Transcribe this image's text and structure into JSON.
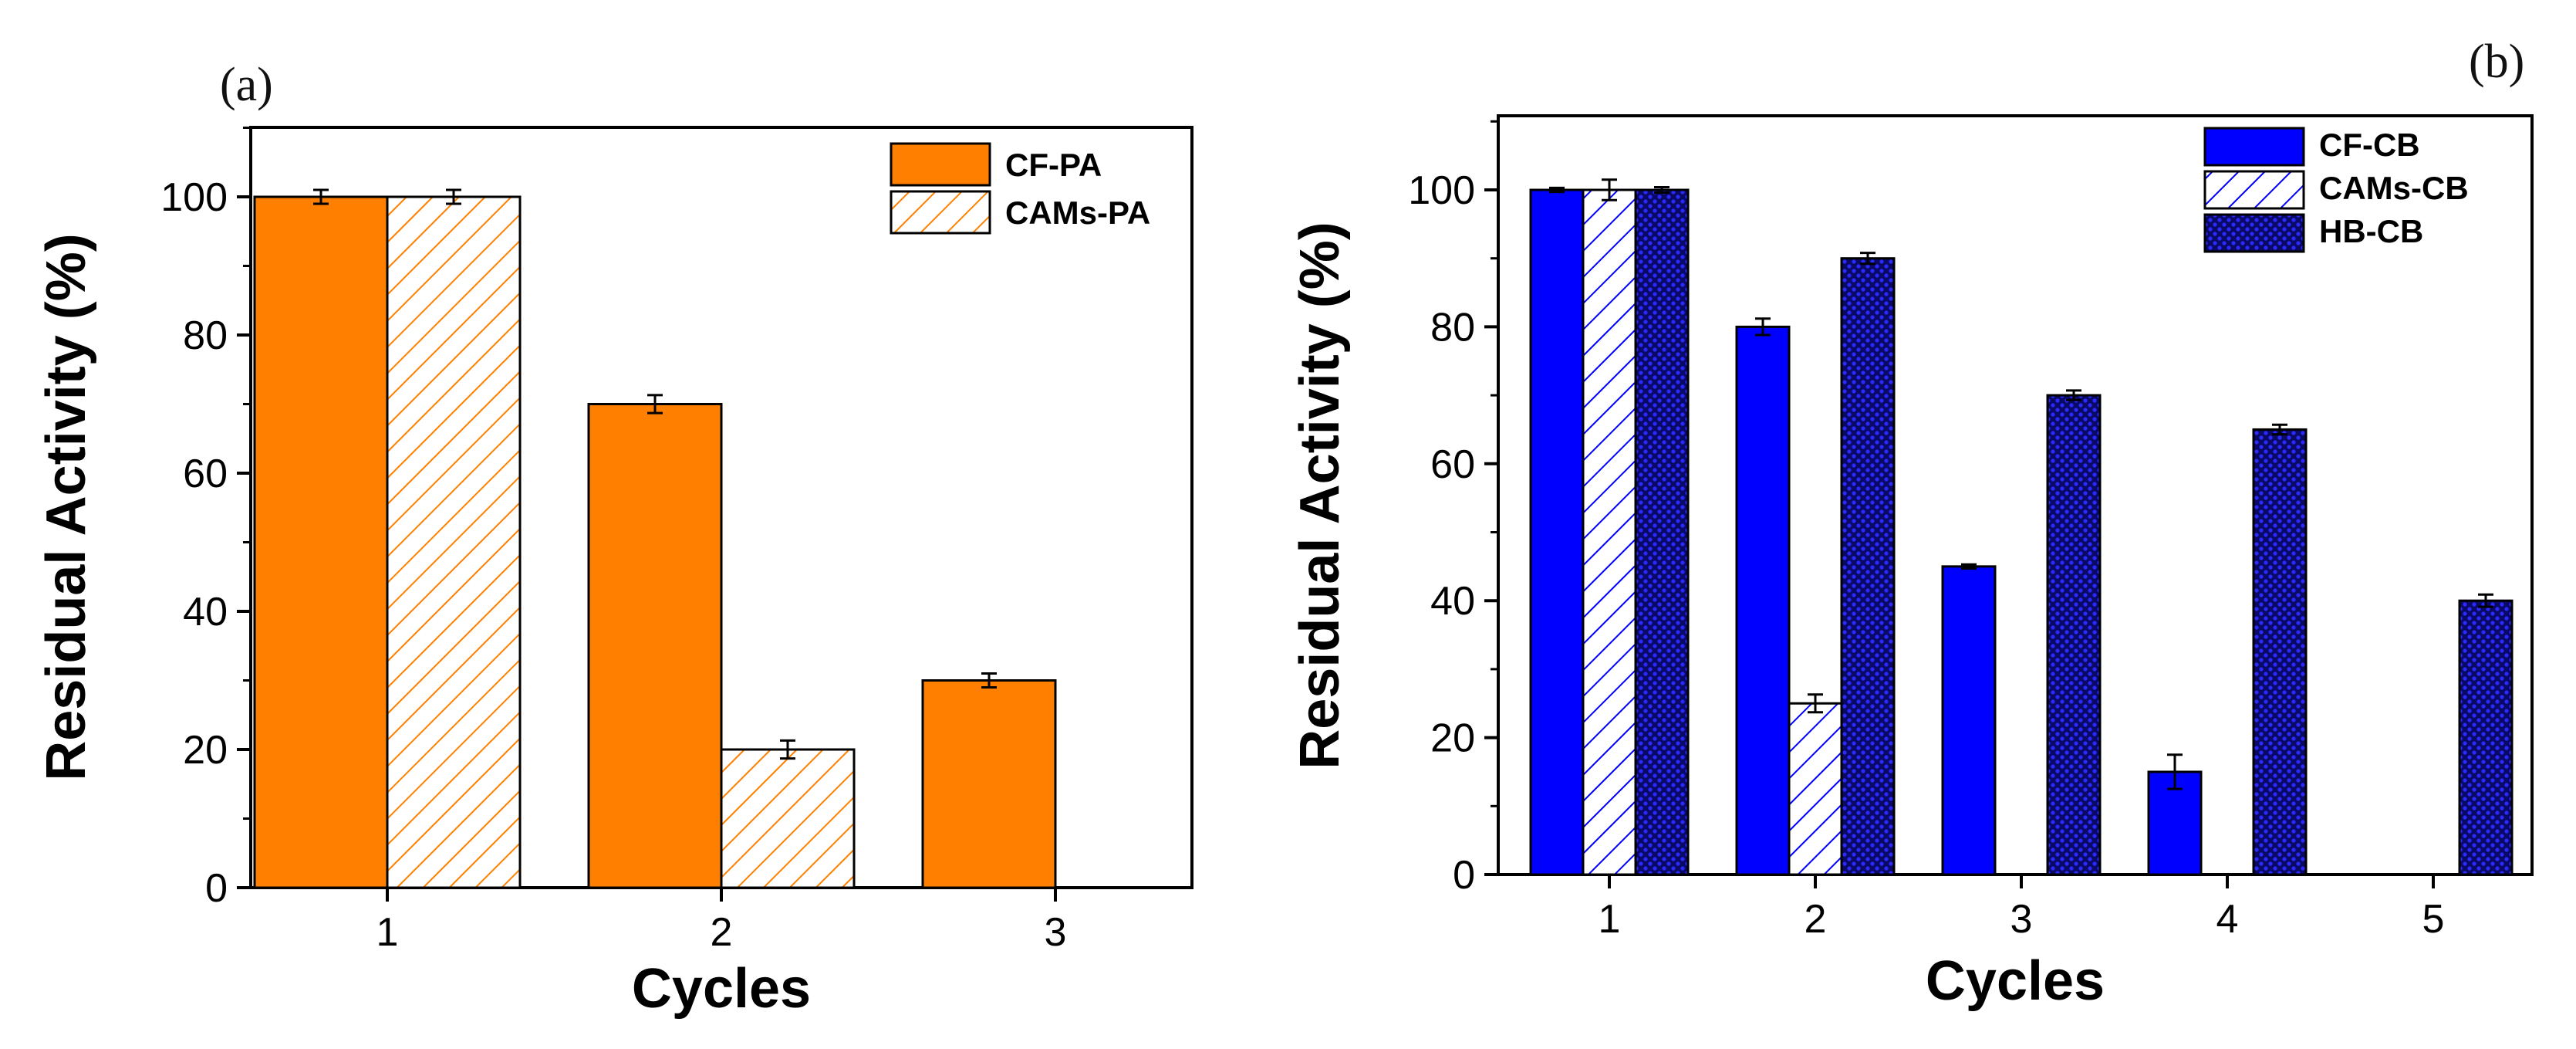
{
  "chart_data": [
    {
      "panel": "(a)",
      "type": "bar",
      "xlabel": "Cycles",
      "ylabel": "Residual Activity (%)",
      "ylim": [
        0,
        110
      ],
      "yticks": [
        0,
        20,
        40,
        60,
        80,
        100
      ],
      "categories": [
        "1",
        "2",
        "3"
      ],
      "series": [
        {
          "name": "CF-PA",
          "color": "#FF8000",
          "pattern": "solid",
          "values": [
            100,
            70,
            30
          ],
          "errors": [
            1.0,
            1.3,
            1.0
          ]
        },
        {
          "name": "CAMs-PA",
          "color": "#FF8000",
          "pattern": "hatch",
          "values": [
            100,
            20,
            null
          ],
          "errors": [
            1.0,
            1.3,
            null
          ]
        }
      ],
      "legend": "top-right"
    },
    {
      "panel": "(b)",
      "type": "bar",
      "xlabel": "Cycles",
      "ylabel": "Residual Activity (%)",
      "ylim": [
        0,
        110
      ],
      "yticks": [
        0,
        20,
        40,
        60,
        80,
        100
      ],
      "categories": [
        "1",
        "2",
        "3",
        "4",
        "5"
      ],
      "series": [
        {
          "name": "CF-CB",
          "color": "#0000FF",
          "pattern": "solid",
          "values": [
            100,
            80,
            45,
            15,
            null
          ],
          "errors": [
            0.3,
            1.2,
            0.3,
            2.5,
            null
          ]
        },
        {
          "name": "CAMs-CB",
          "color": "#0000FF",
          "pattern": "hatch",
          "values": [
            100,
            25,
            null,
            null,
            null
          ],
          "errors": [
            1.5,
            1.3,
            null,
            null,
            null
          ]
        },
        {
          "name": "HB-CB",
          "color": "#0000FF",
          "pattern": "crosshatch",
          "values": [
            100,
            90,
            70,
            65,
            40
          ],
          "errors": [
            0.4,
            0.8,
            0.7,
            0.7,
            0.9
          ]
        }
      ],
      "legend": "top-right"
    }
  ]
}
